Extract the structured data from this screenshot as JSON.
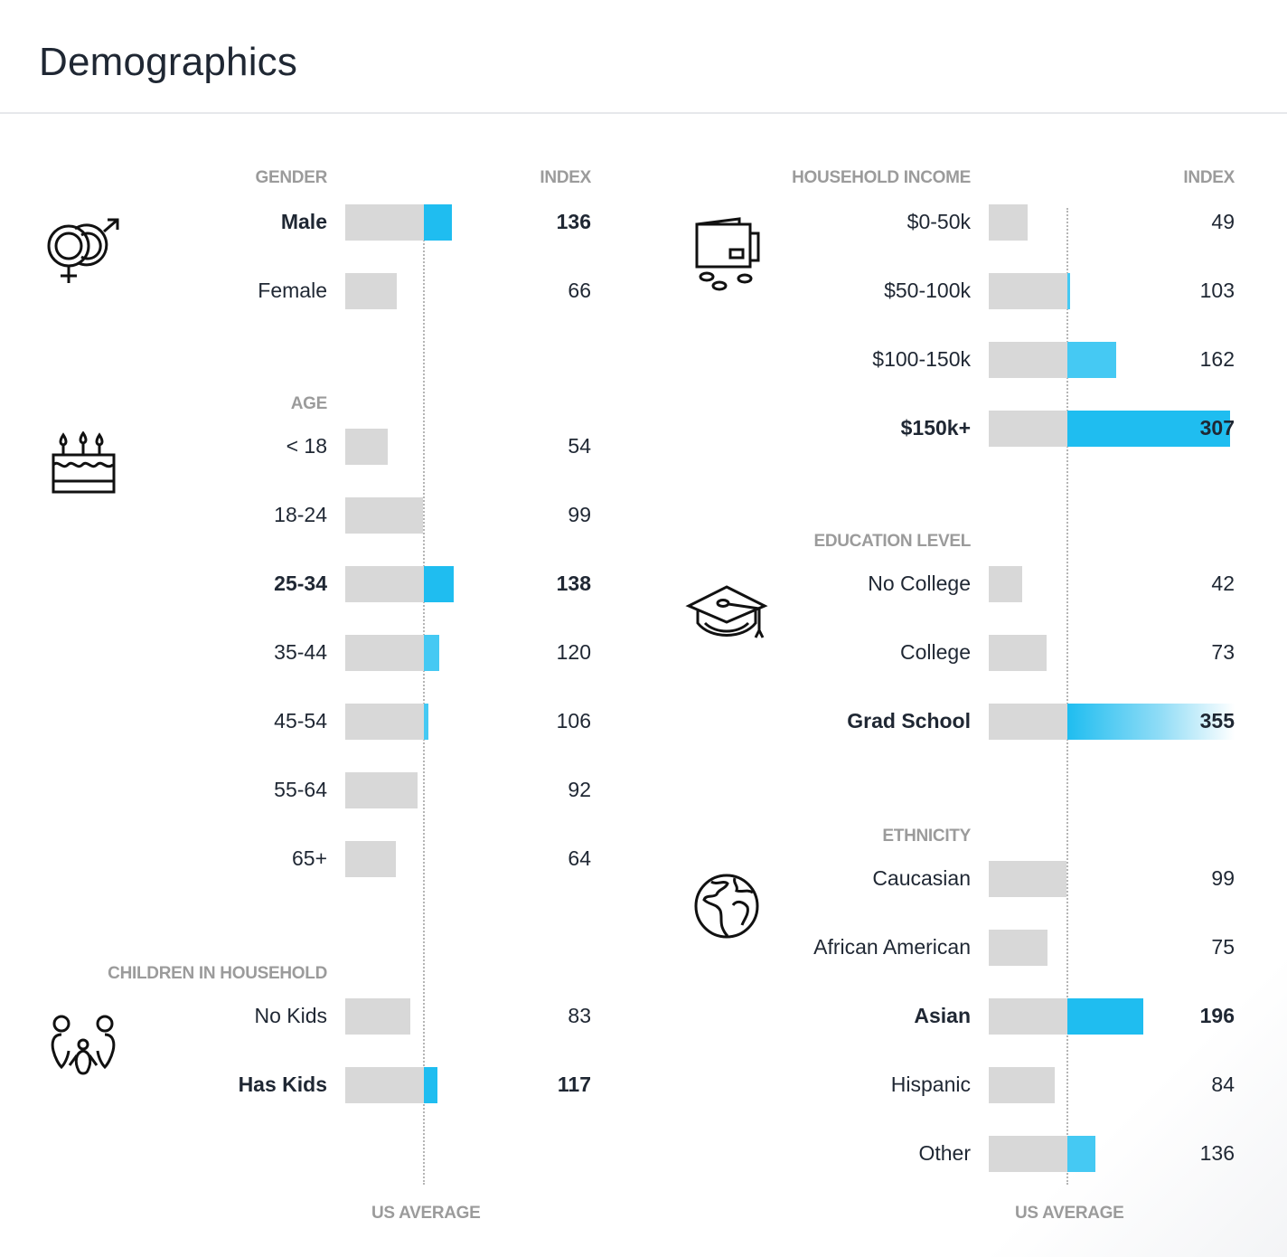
{
  "header": {
    "title": "Demographics"
  },
  "colors": {
    "bar_base": "#d8d8d8",
    "bar_above": "#1fbdf0",
    "heading": "#9b9b9b",
    "text": "#1f2733"
  },
  "index_label": "INDEX",
  "us_average_label": "US AVERAGE",
  "chart_data": [
    {
      "type": "bar",
      "title": "GENDER",
      "icon": "gender-icon",
      "baseline": 100,
      "categories": [
        "Male",
        "Female"
      ],
      "values": [
        136,
        66
      ],
      "labels": [
        "136",
        "66"
      ],
      "highlight": [
        "Male"
      ]
    },
    {
      "type": "bar",
      "title": "AGE",
      "icon": "birthday-cake-icon",
      "baseline": 100,
      "categories": [
        "< 18",
        "18-24",
        "25-34",
        "35-44",
        "45-54",
        "55-64",
        "65+"
      ],
      "values": [
        54,
        99,
        138,
        120,
        106,
        92,
        64
      ],
      "labels": [
        "54",
        "99",
        "138",
        "120",
        "106",
        "92",
        "64"
      ],
      "highlight": [
        "25-34"
      ]
    },
    {
      "type": "bar",
      "title": "CHILDREN IN HOUSEHOLD",
      "icon": "family-icon",
      "baseline": 100,
      "categories": [
        "No Kids",
        "Has Kids"
      ],
      "values": [
        83,
        117
      ],
      "labels": [
        "83",
        "117"
      ],
      "highlight": [
        "Has Kids"
      ]
    },
    {
      "type": "bar",
      "title": "HOUSEHOLD INCOME",
      "icon": "wallet-icon",
      "baseline": 100,
      "categories": [
        "$0-50k",
        "$50-100k",
        "$100-150k",
        "$150k+"
      ],
      "values": [
        49,
        103,
        162,
        307
      ],
      "labels": [
        "49",
        "103",
        "162",
        "307"
      ],
      "highlight": [
        "$150k+"
      ]
    },
    {
      "type": "bar",
      "title": "EDUCATION LEVEL",
      "icon": "graduation-cap-icon",
      "baseline": 100,
      "categories": [
        "No College",
        "College",
        "Grad School"
      ],
      "values": [
        42,
        73,
        355
      ],
      "labels": [
        "42",
        "73",
        "355"
      ],
      "highlight": [
        "Grad School"
      ]
    },
    {
      "type": "bar",
      "title": "ETHNICITY",
      "icon": "globe-icon",
      "baseline": 100,
      "categories": [
        "Caucasian",
        "African American",
        "Asian",
        "Hispanic",
        "Other"
      ],
      "values": [
        99,
        75,
        196,
        84,
        136
      ],
      "labels": [
        "99",
        "75",
        "196",
        "84",
        "136"
      ],
      "highlight": [
        "Asian"
      ]
    }
  ]
}
